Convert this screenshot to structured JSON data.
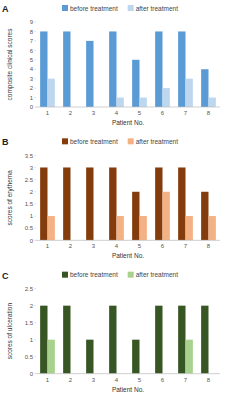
{
  "chart_data": [
    {
      "type": "bar",
      "title": "A",
      "x_label": "Patient No.",
      "y_label": "composite clinical scores",
      "categories": [
        "1",
        "2",
        "3",
        "4",
        "5",
        "6",
        "7",
        "8"
      ],
      "series": [
        {
          "name": "before treatment",
          "color": "#5b9bd5",
          "values": [
            8,
            8,
            7,
            8,
            5,
            8,
            8,
            4
          ]
        },
        {
          "name": "after treatment",
          "color": "#bdd7ee",
          "values": [
            3,
            0,
            0,
            1,
            1,
            2,
            3,
            1
          ]
        }
      ],
      "ylim": [
        0,
        9
      ],
      "yticks": [
        0,
        1,
        2,
        3,
        4,
        5,
        6,
        7,
        8,
        9
      ],
      "grid": false,
      "legend": "top"
    },
    {
      "type": "bar",
      "title": "B",
      "x_label": "Patient No.",
      "y_label": "scores of erythema",
      "categories": [
        "1",
        "2",
        "3",
        "4",
        "5",
        "6",
        "7",
        "8"
      ],
      "series": [
        {
          "name": "before treatment",
          "color": "#843c0c",
          "values": [
            3,
            3,
            3,
            3,
            2,
            3,
            3,
            2
          ]
        },
        {
          "name": "after treatment",
          "color": "#f4b183",
          "values": [
            1,
            0,
            0,
            1,
            1,
            2,
            1,
            1
          ]
        }
      ],
      "ylim": [
        0,
        3.5
      ],
      "yticks": [
        0,
        0.5,
        1,
        1.5,
        2,
        2.5,
        3,
        3.5
      ],
      "grid": false,
      "legend": "top"
    },
    {
      "type": "bar",
      "title": "C",
      "x_label": "Patient No.",
      "y_label": "scores of ulceration",
      "categories": [
        "1",
        "2",
        "3",
        "4",
        "5",
        "6",
        "7",
        "8"
      ],
      "series": [
        {
          "name": "before treatment",
          "color": "#375623",
          "values": [
            2,
            2,
            1,
            2,
            1,
            2,
            2,
            2
          ]
        },
        {
          "name": "after treatment",
          "color": "#a9d18e",
          "values": [
            1,
            0,
            0,
            0,
            0,
            0,
            1,
            0
          ]
        }
      ],
      "ylim": [
        0,
        2.5
      ],
      "yticks": [
        0,
        0.5,
        1,
        1.5,
        2,
        2.5
      ],
      "grid": false,
      "legend": "top"
    }
  ]
}
